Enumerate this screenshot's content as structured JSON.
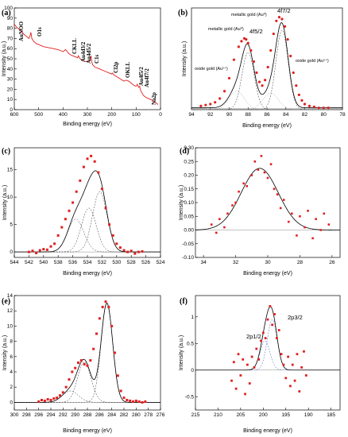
{
  "chart_data": [
    {
      "panel_label": "(a)",
      "type": "line",
      "xlabel": "Binding energy (eV)",
      "ylabel": "Intensity (a.u.)",
      "xlim": [
        600,
        0
      ],
      "ylim": [
        0,
        100
      ],
      "xticks": [
        600,
        500,
        400,
        300,
        200,
        100,
        0
      ],
      "yticks": [
        0,
        10,
        20,
        30,
        40,
        50,
        60,
        70,
        80,
        90,
        100
      ],
      "color": "#e02020",
      "series": [
        {
          "x": [
            600,
            590,
            580,
            570,
            560,
            550,
            540,
            535,
            532,
            528,
            520,
            510,
            500,
            480,
            460,
            440,
            420,
            410,
            400,
            395,
            390,
            385,
            380,
            370,
            360,
            350,
            340,
            337,
            335,
            330,
            320,
            300,
            290,
            285,
            282,
            278,
            270,
            250,
            230,
            210,
            200,
            198,
            190,
            170,
            150,
            140,
            130,
            120,
            110,
            100,
            95,
            90,
            85,
            84,
            80,
            70,
            60,
            50,
            40,
            30,
            20,
            10
          ],
          "values": [
            84,
            81,
            79,
            77,
            74,
            72,
            70,
            73,
            76,
            70,
            67,
            65,
            64,
            62,
            61,
            60,
            59,
            58,
            57,
            58,
            59,
            58,
            56,
            54,
            53,
            52,
            51,
            53,
            52,
            50,
            48,
            47,
            48,
            53,
            47,
            44,
            42,
            40,
            38,
            36,
            35,
            36,
            34,
            31,
            28,
            29,
            28,
            26,
            24,
            23,
            25,
            22,
            23,
            21,
            18,
            14,
            12,
            11,
            10,
            9,
            7,
            5
          ]
        }
      ],
      "annotations": [
        "AuNOO",
        "O1s",
        "CKLL",
        "Au4d3/2",
        "Au4d5/2",
        "C1s",
        "Cl2p",
        "OKLL",
        "Au4f5/2",
        "Au4f7/2",
        "Na2p"
      ]
    },
    {
      "panel_label": "(b)",
      "type": "scatter",
      "xlabel": "Binding energy (eV)",
      "ylabel": "Intensity (a.u.)",
      "xlim": [
        94,
        78
      ],
      "ylim": [
        0,
        55
      ],
      "xticks": [
        94,
        92,
        90,
        88,
        86,
        84,
        82,
        80,
        78
      ],
      "color": "#e02020",
      "points": {
        "x": [
          93.0,
          92.5,
          92.0,
          91.5,
          91.0,
          90.5,
          90.0,
          89.5,
          89.0,
          88.7,
          88.4,
          88.2,
          88.0,
          87.7,
          87.4,
          87.1,
          86.8,
          86.5,
          86.2,
          85.9,
          85.6,
          85.3,
          85.0,
          84.7,
          84.4,
          84.1,
          83.8,
          83.5,
          83.2,
          82.9,
          82.6,
          82.3,
          82.0,
          81.5,
          81.0,
          80.5,
          80.0,
          79.5
        ],
        "y": [
          2,
          2.5,
          3,
          4,
          6,
          10,
          17,
          27,
          34,
          37,
          38.5,
          38,
          36,
          32,
          26,
          20,
          15,
          13,
          16,
          23,
          32,
          41,
          48,
          50,
          49,
          45,
          38,
          29,
          20,
          13,
          8,
          5,
          3,
          2,
          1.5,
          1,
          1,
          1
        ]
      },
      "annotations": [
        "metallic gold (Au⁰)",
        "4f7/2",
        "metallic gold (Au⁰)",
        "4f5/2",
        "oxide gold (Au¹⁺)",
        "oxide gold (Au¹⁺)"
      ]
    },
    {
      "panel_label": "(c)",
      "type": "scatter",
      "xlabel": "Binding energy (eV)",
      "ylabel": "Intensity (a.u.)",
      "xlim": [
        544,
        524
      ],
      "ylim": [
        -1,
        19
      ],
      "xticks": [
        544,
        542,
        540,
        538,
        536,
        534,
        532,
        530,
        528,
        526,
        524
      ],
      "yticks": [
        0,
        5,
        10,
        15
      ],
      "color": "#e02020",
      "points": {
        "x": [
          542,
          541.5,
          541,
          540.5,
          540,
          539.5,
          539,
          538.5,
          538,
          537.5,
          537,
          536.5,
          536,
          535.5,
          535,
          534.5,
          534,
          533.5,
          533,
          532.5,
          532,
          531.5,
          531,
          530.5,
          530,
          529.5,
          529,
          528.5,
          528,
          527.5,
          527,
          526.5
        ],
        "y": [
          0,
          0.2,
          -0.2,
          0.3,
          0.5,
          0.4,
          1,
          1.5,
          3,
          4.5,
          6,
          7.5,
          9,
          11,
          13,
          15.5,
          17,
          17.5,
          16.5,
          14.5,
          11.5,
          8,
          5,
          3,
          1.5,
          0.8,
          0.3,
          0,
          0.2,
          -0.3,
          0,
          0.1
        ]
      }
    },
    {
      "panel_label": "(d)",
      "type": "scatter",
      "xlabel": "Binding energy (eV)",
      "ylabel": "Intensity (a.u.)",
      "xlim": [
        34.5,
        25.5
      ],
      "ylim": [
        -0.1,
        0.3
      ],
      "xticks": [
        34,
        32,
        30,
        28,
        26
      ],
      "yticks": [
        -0.1,
        -0.05,
        0.0,
        0.05,
        0.1,
        0.15,
        0.2,
        0.25,
        0.3
      ],
      "yticklabels": [
        "-0.10",
        "-0.05",
        "0.00",
        "0.05",
        "0.10",
        "0.15",
        "0.20",
        "0.25",
        "0.30"
      ],
      "color": "#e02020",
      "points": {
        "x": [
          33.5,
          33.2,
          33.0,
          32.7,
          32.5,
          32.2,
          32.0,
          31.8,
          31.5,
          31.3,
          31.0,
          30.8,
          30.6,
          30.4,
          30.2,
          30.0,
          29.8,
          29.6,
          29.4,
          29.2,
          29.0,
          28.7,
          28.5,
          28.2,
          28.0,
          27.7,
          27.5,
          27.2,
          27.0,
          26.7,
          26.5,
          26.2
        ],
        "y": [
          0.02,
          -0.01,
          0.04,
          0.01,
          0.06,
          0.09,
          0.1,
          0.14,
          0.17,
          0.16,
          0.2,
          0.25,
          0.22,
          0.27,
          0.21,
          0.19,
          0.24,
          0.15,
          0.13,
          0.08,
          0.11,
          0.03,
          0.06,
          -0.02,
          0.05,
          0.01,
          0.07,
          -0.03,
          0.04,
          0.0,
          0.06,
          0.02
        ]
      }
    },
    {
      "panel_label": "(e)",
      "type": "scatter",
      "xlabel": "Binding energy (eV)",
      "ylabel": "Intensity (a.u.)",
      "xlim": [
        300,
        276
      ],
      "ylim": [
        -1,
        14
      ],
      "xticks": [
        300,
        298,
        296,
        294,
        292,
        290,
        288,
        286,
        284,
        282,
        280,
        278,
        276
      ],
      "yticks": [
        0,
        2,
        4,
        6,
        8,
        10,
        12,
        14
      ],
      "color": "#e02020",
      "points": {
        "x": [
          296,
          295.5,
          295,
          294.5,
          294,
          293.5,
          293,
          292.5,
          292,
          291.5,
          291,
          290.5,
          290,
          289.5,
          289,
          288.5,
          288,
          287.5,
          287,
          286.5,
          286,
          285.5,
          285,
          284.5,
          284,
          283.5,
          283,
          282.5,
          282,
          281.5,
          281,
          280.5,
          280,
          279.5,
          279,
          278.5
        ],
        "y": [
          0.1,
          0.3,
          0.2,
          0.4,
          0.3,
          0.5,
          0.6,
          0.9,
          1.3,
          2,
          3,
          4,
          4.5,
          5.2,
          5.5,
          5,
          4.8,
          5.5,
          7,
          9,
          11,
          12.5,
          13.2,
          12.5,
          10,
          6.5,
          3.5,
          1.5,
          0.6,
          0.3,
          0.2,
          0.1,
          0.2,
          0.1,
          0,
          0.1
        ]
      }
    },
    {
      "panel_label": "(f)",
      "type": "scatter",
      "xlabel": "Binding energy (eV)",
      "ylabel": "Intensity (a.u.)",
      "xlim": [
        215,
        183
      ],
      "ylim": [
        -0.75,
        1.4
      ],
      "xticks": [
        215,
        210,
        205,
        200,
        195,
        190,
        185
      ],
      "yticks": [
        -0.5,
        0.0,
        0.5,
        1.0
      ],
      "color": "#e02020",
      "points": {
        "x": [
          207,
          206.5,
          206,
          205.5,
          205,
          204.5,
          204,
          203.5,
          203,
          202.5,
          202,
          201.5,
          201,
          200.5,
          200,
          199.5,
          199,
          198.5,
          198,
          197.5,
          197,
          196.5,
          196,
          195.5,
          195,
          194.5,
          194,
          193.5,
          193,
          192.5,
          192,
          191.5,
          191,
          190.5
        ],
        "y": [
          -0.2,
          0.15,
          -0.35,
          0.3,
          -0.1,
          0.2,
          -0.45,
          0.1,
          -0.25,
          0.25,
          0.05,
          0.4,
          0.2,
          0.55,
          0.7,
          0.6,
          0.95,
          1.2,
          0.85,
          1.05,
          0.6,
          0.75,
          0.3,
          0.1,
          -0.15,
          0.25,
          -0.3,
          0.1,
          -0.2,
          0.3,
          -0.4,
          0.05,
          0.35,
          -0.1
        ]
      },
      "annotations": [
        "2p1/2",
        "2p3/2"
      ]
    }
  ]
}
